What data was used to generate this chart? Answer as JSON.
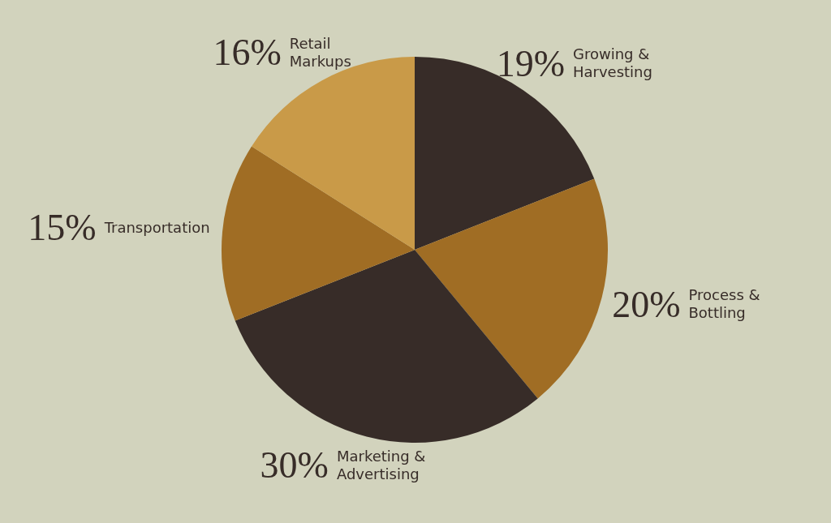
{
  "chart_data": {
    "type": "pie",
    "categories": [
      "Growing & Harvesting",
      "Process & Bottling",
      "Marketing & Advertising",
      "Transportation",
      "Retail Markups"
    ],
    "values": [
      19,
      20,
      30,
      15,
      16
    ],
    "colors": [
      "#372c28",
      "#a06d24",
      "#372c28",
      "#a06d24",
      "#c99a48"
    ],
    "value_labels": [
      "19%",
      "20%",
      "30%",
      "15%",
      "16%"
    ],
    "legend": false
  }
}
